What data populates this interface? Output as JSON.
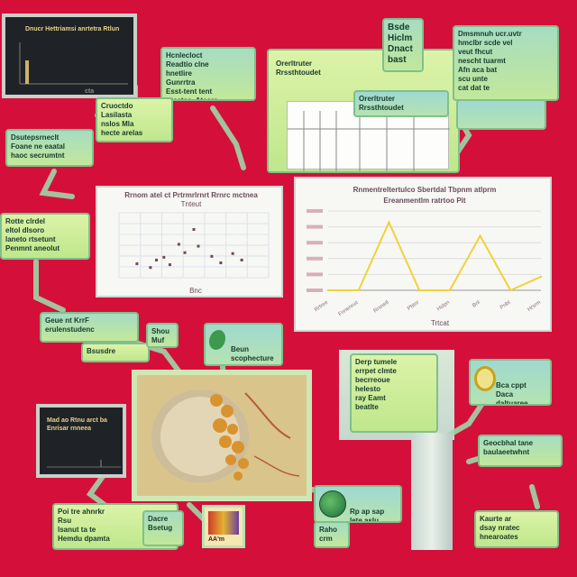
{
  "palette": {
    "background": "#d4103a",
    "note_fill": "#b7e3b5",
    "note_border": "#7fc08a",
    "chart_line": "#efd23a",
    "dark_card": "#1f2328"
  },
  "notes": {
    "top_center_a": "Hcnlecloct\nReadtio clne\nhnetlire\nGunrrtra\nEsst-tent tent\nPtcctas, Ateere",
    "top_center_b": "Cruoctdo\nLasilasta\nnslos Mla\nhecte arelas",
    "top_right_tag": "Bsde\nHiclm\nDnact\nbast",
    "top_right_text": "Dmsmnuh ucr.uvtr\nhmclbr scde vel\nveut fhcut\nnescht tuarmt\nAfn aca bat\nscu unte\ncat dat te",
    "left_mid": "Dsutepsrneclt\nFoane ne eaatal\nhaoc secrumtnt",
    "left_lower": "Rotte clrdel\neltol dlsoro\nlaneto rtsetunt\nPenmnt aneolut",
    "table_tag": "Orerltruter\nRrssthtoudet",
    "center_left_a": "Geue nt KrrF\nerulenstudenc",
    "center_left_b": "Bsusdre",
    "center_left_c": "Shou\nMuf",
    "micro_tag": "Beun\nscophecture\nEaulfhl ater",
    "right_mid_a": "Derp tumele\nerrpet clmte\nbecrreoue\nhelesto\nray Eamt\nbeatlte",
    "right_mid_b": "Bca cppt\nDaca\ndaltuaree\nhcarcenes",
    "right_lower": "Geocbhal tane\nbaulaeetwhnt",
    "bottom_left": "Poi  tre  ahnrkr\nRsu\nlsanut ta te\nHemdu  dpamta",
    "bottom_center_tag": "Dacre\nBsetug",
    "bottom_globe_a": "Rp ap sap\nlete aslu\nrapa preode",
    "bottom_globe_b": "Raho\ncrm",
    "bottom_right": "Kaurte ar\ndsay nratec\nhnearoates"
  },
  "charts": {
    "dark_top_left": {
      "title": "Dnucr Hettriamsi anrtetra Rtlun",
      "footer": "cta"
    },
    "dark_bottom_left": {
      "title": "Mad ao Rtnu arct ba Enrisar rnneea"
    },
    "scatter": {
      "title": "Rrnom atel ct Prtrmrlrnrt Rrnrc mctnea",
      "subtitle": "Tnteut",
      "xlabel": "Bnc"
    },
    "line": {
      "title": "Rnmentreltertulco Sbertdal Tbpnm atlprm",
      "subtitle": "Ereanmentlm ratrtoo Pit",
      "xlabel": "Trtcat"
    },
    "book_logo": "AA'm"
  },
  "chart_data": [
    {
      "type": "line",
      "title": "Rnmentreltertulco Sbertdal Tbpnm atlprm",
      "subtitle": "Ereanmentlm ratrtoo Pit",
      "xlabel": "Trtcat",
      "ylabel": "",
      "categories": [
        "Rrtree",
        "Fnnereuc",
        "Rnmetl",
        "Pbtnr",
        "Hslpn",
        "Bnl",
        "Pnbt",
        "Hrsrm"
      ],
      "values": [
        0,
        0,
        60,
        0,
        0,
        48,
        0,
        12
      ],
      "ylim": [
        0,
        70
      ],
      "grid": true
    },
    {
      "type": "scatter",
      "title": "Rrnom atel ct Prtrmrlrnrt Rrnrc mctnea",
      "subtitle": "Tnteut",
      "xlabel": "Bnc",
      "ylabel": "",
      "points": [
        {
          "x": 1.2,
          "y": 1.5
        },
        {
          "x": 2.1,
          "y": 1.1
        },
        {
          "x": 2.5,
          "y": 1.9
        },
        {
          "x": 3.0,
          "y": 2.2
        },
        {
          "x": 3.4,
          "y": 1.4
        },
        {
          "x": 4.0,
          "y": 3.6
        },
        {
          "x": 4.4,
          "y": 2.7
        },
        {
          "x": 5.0,
          "y": 5.2
        },
        {
          "x": 5.3,
          "y": 3.4
        },
        {
          "x": 6.2,
          "y": 2.3
        },
        {
          "x": 6.8,
          "y": 1.6
        },
        {
          "x": 7.6,
          "y": 2.6
        },
        {
          "x": 8.2,
          "y": 1.9
        }
      ],
      "xlim": [
        0,
        10
      ],
      "ylim": [
        0,
        7
      ],
      "grid": true
    }
  ]
}
